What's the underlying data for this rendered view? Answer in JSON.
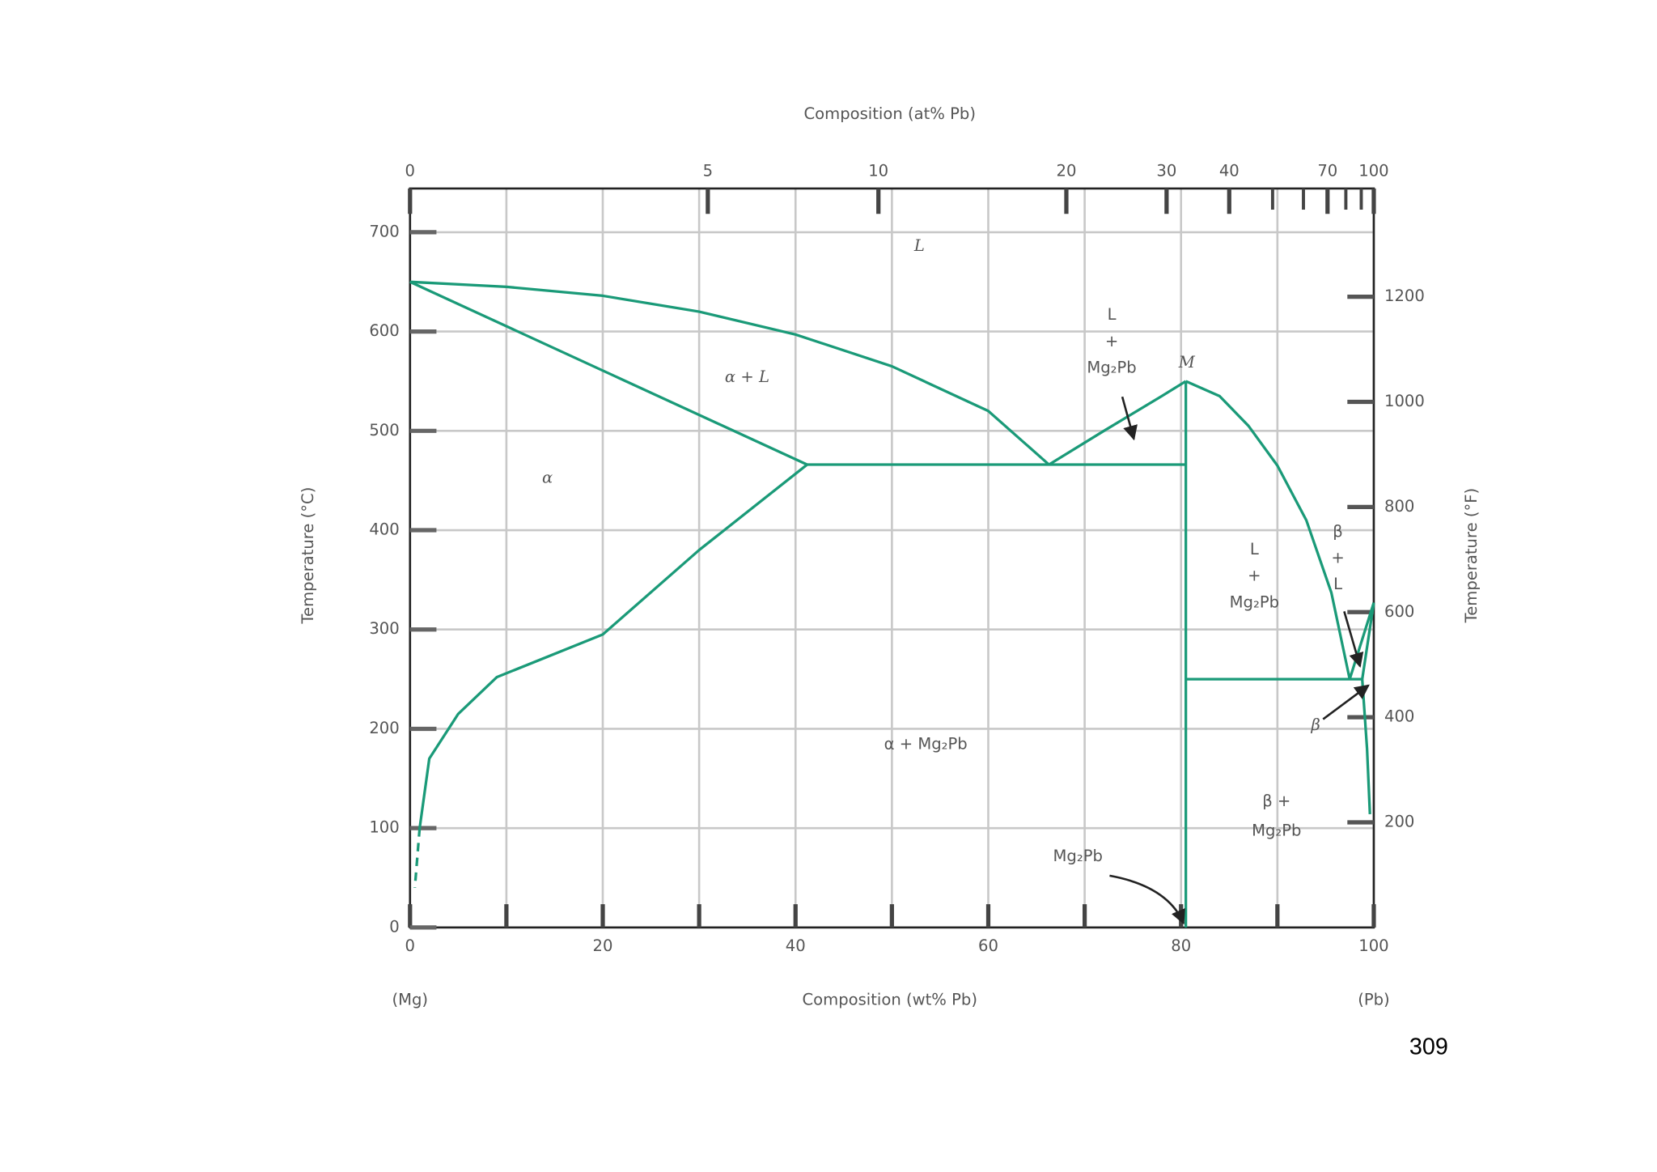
{
  "chart_data": {
    "type": "line",
    "title_top": "Composition (at% Pb)",
    "xlabel": "Composition (wt% Pb)",
    "ylabel": "Temperature (°C)",
    "y2label": "Temperature (°F)",
    "x_left_label": "(Mg)",
    "x_right_label": "(Pb)",
    "page_number": "309",
    "xlim": [
      0,
      100
    ],
    "xticks": [
      0,
      20,
      40,
      60,
      80,
      100
    ],
    "xticks_minor": [
      10,
      30,
      50,
      70,
      90
    ],
    "x2ticks": [
      {
        "value": 0,
        "label": "0"
      },
      {
        "value": 30.9,
        "label": "5"
      },
      {
        "value": 48.6,
        "label": "10"
      },
      {
        "value": 68.1,
        "label": "20"
      },
      {
        "value": 78.5,
        "label": "30"
      },
      {
        "value": 85.0,
        "label": "40"
      },
      {
        "value": 95.2,
        "label": "70"
      },
      {
        "value": 100,
        "label": "100"
      }
    ],
    "x2ticks_minor": [
      89.5,
      92.7,
      97.1,
      98.7
    ],
    "ylim": [
      0,
      744
    ],
    "yticks": [
      0,
      100,
      200,
      300,
      400,
      500,
      600,
      700
    ],
    "y2lim": [
      0,
      1406
    ],
    "y2ticks": [
      200,
      400,
      600,
      800,
      1000,
      1200
    ],
    "grid": true,
    "color": "#1a9a78",
    "series": [
      {
        "x": [
          0,
          10,
          20,
          30,
          40,
          50,
          60,
          66.3
        ],
        "values": [
          650,
          645,
          636,
          620,
          597,
          565,
          520,
          466
        ]
      },
      {
        "x": [
          0,
          41.2
        ],
        "values": [
          650,
          466
        ]
      },
      {
        "x": [
          41.2,
          30,
          20,
          9,
          5,
          2,
          1
        ],
        "values": [
          466,
          380,
          295,
          252,
          215,
          170,
          100
        ]
      },
      {
        "x": [
          1,
          0.5
        ],
        "values": [
          100,
          40
        ],
        "dashed": true
      },
      {
        "x": [
          41.2,
          80.5
        ],
        "values": [
          466,
          466
        ]
      },
      {
        "x": [
          66.3,
          72,
          78,
          80.5
        ],
        "values": [
          466,
          500,
          535,
          550
        ]
      },
      {
        "x": [
          80.5,
          80.5
        ],
        "values": [
          0,
          550
        ]
      },
      {
        "x": [
          80.5,
          84,
          87,
          90,
          93,
          95.6,
          97.5
        ],
        "values": [
          550,
          535,
          505,
          465,
          410,
          337,
          250
        ]
      },
      {
        "x": [
          80.5,
          98.8
        ],
        "values": [
          250,
          250
        ]
      },
      {
        "x": [
          97.5,
          100
        ],
        "values": [
          250,
          327
        ]
      },
      {
        "x": [
          98.8,
          100
        ],
        "values": [
          250,
          327
        ]
      },
      {
        "x": [
          98.8,
          99.3,
          99.6
        ],
        "values": [
          250,
          180,
          114
        ]
      }
    ],
    "annotations": [
      "L",
      "α + L",
      "α",
      [
        "L",
        "+",
        "Mg₂Pb"
      ],
      "M",
      [
        "L",
        "+",
        "Mg₂Pb"
      ],
      [
        "β",
        "+",
        "L"
      ],
      "α + Mg₂Pb",
      [
        "β +",
        "Mg₂Pb"
      ],
      "Mg₂Pb",
      "β"
    ]
  }
}
